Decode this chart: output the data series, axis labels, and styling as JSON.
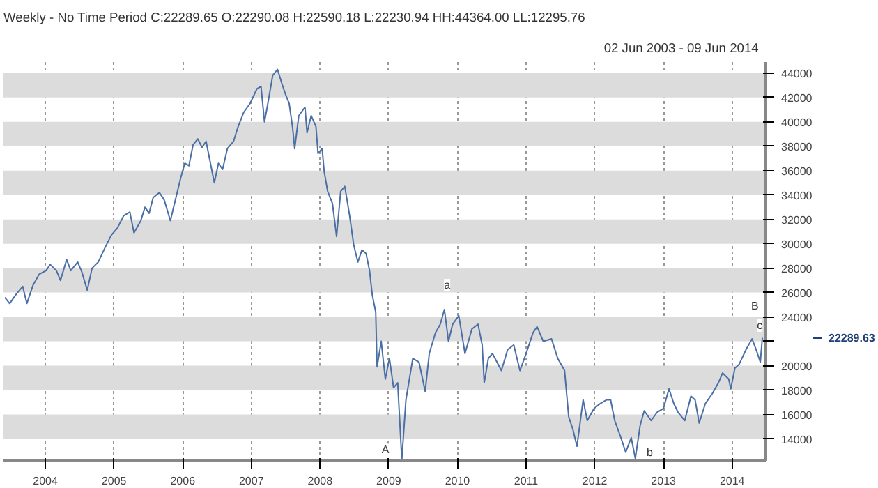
{
  "chart_data": {
    "type": "line",
    "title": "Weekly - No Time Period  C:22289.65 O:22290.08 H:22590.18 L:22230.94 HH:44364.00 LL:12295.76",
    "subtitle": "02 Jun 2003  -  09 Jun 2014",
    "x": [
      2003.41,
      2003.48,
      2003.58,
      2003.67,
      2003.73,
      2003.82,
      2003.91,
      2004.01,
      2004.07,
      2004.16,
      2004.22,
      2004.31,
      2004.37,
      2004.47,
      2004.53,
      2004.61,
      2004.68,
      2004.77,
      2004.87,
      2004.96,
      2005.05,
      2005.14,
      2005.23,
      2005.29,
      2005.39,
      2005.45,
      2005.51,
      2005.57,
      2005.66,
      2005.73,
      2005.82,
      2005.88,
      2005.97,
      2006.03,
      2006.09,
      2006.15,
      2006.22,
      2006.28,
      2006.34,
      2006.4,
      2006.46,
      2006.52,
      2006.58,
      2006.65,
      2006.74,
      2006.8,
      2006.89,
      2006.98,
      2007.08,
      2007.14,
      2007.19,
      2007.23,
      2007.31,
      2007.38,
      2007.44,
      2007.5,
      2007.55,
      2007.6,
      2007.63,
      2007.69,
      2007.78,
      2007.81,
      2007.87,
      2007.94,
      2007.97,
      2008.03,
      2008.06,
      2008.11,
      2008.18,
      2008.24,
      2008.3,
      2008.36,
      2008.43,
      2008.49,
      2008.55,
      2008.61,
      2008.67,
      2008.72,
      2008.76,
      2008.81,
      2008.83,
      2008.89,
      2008.95,
      2009.01,
      2009.07,
      2009.13,
      2009.19,
      2009.25,
      2009.35,
      2009.44,
      2009.53,
      2009.59,
      2009.68,
      2009.75,
      2009.81,
      2009.87,
      2009.93,
      2010.02,
      2010.11,
      2010.21,
      2010.3,
      2010.36,
      2010.39,
      2010.45,
      2010.51,
      2010.64,
      2010.73,
      2010.82,
      2010.91,
      2011.0,
      2011.1,
      2011.16,
      2011.25,
      2011.37,
      2011.46,
      2011.56,
      2011.62,
      2011.68,
      2011.74,
      2011.83,
      2011.89,
      2011.99,
      2012.08,
      2012.17,
      2012.23,
      2012.29,
      2012.38,
      2012.45,
      2012.53,
      2012.59,
      2012.66,
      2012.72,
      2012.82,
      2012.91,
      2013.0,
      2013.08,
      2013.15,
      2013.21,
      2013.31,
      2013.4,
      2013.46,
      2013.52,
      2013.61,
      2013.71,
      2013.8,
      2013.86,
      2013.95,
      2013.98,
      2014.04,
      2014.1,
      2014.2,
      2014.29,
      2014.35,
      2014.41,
      2014.44
    ],
    "series": [
      {
        "color": "#4a6fa5",
        "values": [
          25600,
          25100,
          25900,
          26500,
          25100,
          26600,
          27500,
          27800,
          28300,
          27800,
          27000,
          28700,
          27800,
          28500,
          27700,
          26200,
          28000,
          28500,
          29700,
          30700,
          31300,
          32300,
          32600,
          30900,
          31900,
          33000,
          32500,
          33800,
          34200,
          33600,
          31900,
          33300,
          35400,
          36600,
          36400,
          38100,
          38600,
          37900,
          38400,
          36700,
          35000,
          36600,
          36100,
          37800,
          38400,
          39500,
          40800,
          41500,
          42700,
          42900,
          40000,
          41200,
          43800,
          44300,
          43200,
          42200,
          41500,
          39500,
          37800,
          40500,
          41200,
          39100,
          40500,
          39600,
          37400,
          37800,
          35900,
          34300,
          33300,
          30600,
          34300,
          34700,
          32300,
          29900,
          28500,
          29500,
          29200,
          27800,
          25800,
          24400,
          19900,
          22000,
          18900,
          20600,
          18200,
          18600,
          12300,
          17200,
          20600,
          20300,
          17900,
          21000,
          22700,
          23400,
          24600,
          22000,
          23400,
          24100,
          21000,
          23000,
          23400,
          21700,
          18600,
          20600,
          21000,
          19600,
          21300,
          21700,
          19600,
          21000,
          22700,
          23200,
          22000,
          22200,
          20600,
          19600,
          15800,
          14800,
          13400,
          17200,
          15500,
          16500,
          16900,
          17200,
          17200,
          15500,
          14100,
          12900,
          14100,
          12400,
          15100,
          16300,
          15500,
          16200,
          16500,
          18100,
          16900,
          16200,
          15500,
          17500,
          17200,
          15300,
          16900,
          17700,
          18600,
          19400,
          18900,
          18100,
          19800,
          20100,
          21300,
          22200,
          21300,
          20300,
          22300
        ]
      }
    ],
    "xlim": [
      2003.39,
      2014.49
    ],
    "xticks": [
      2004,
      2005,
      2006,
      2007,
      2008,
      2009,
      2010,
      2011,
      2012,
      2013,
      2014
    ],
    "ylim": [
      12200,
      44900
    ],
    "yticks": [
      14000,
      16000,
      18000,
      20000,
      {
        "value": 22000,
        "label": null
      },
      24000,
      26000,
      28000,
      30000,
      32000,
      34000,
      36000,
      38000,
      40000,
      42000,
      44000
    ],
    "grid": true,
    "line_style": "solid",
    "annotations": [
      {
        "text": "A",
        "x": 2008.95,
        "y": 13100
      },
      {
        "text": "a",
        "x": 2009.85,
        "y": 26600
      },
      {
        "text": "b",
        "x": 2012.8,
        "y": 12900
      },
      {
        "text": "B",
        "x": 2014.33,
        "y": 24900
      },
      {
        "text": "c",
        "x": 2014.4,
        "y": 23300
      },
      "22289.63"
    ]
  }
}
